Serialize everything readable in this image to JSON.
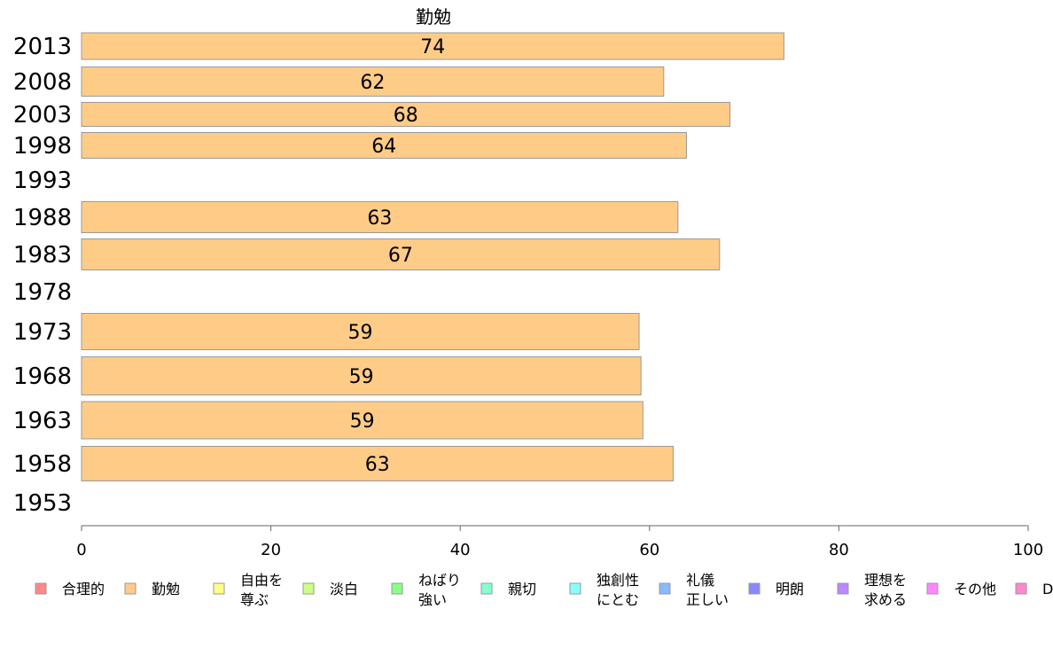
{
  "chart_data": {
    "type": "bar",
    "orientation": "horizontal",
    "title": "勤勉",
    "xlabel": "",
    "ylabel": "",
    "xlim": [
      0,
      100
    ],
    "x_ticks": [
      "0",
      "20",
      "40",
      "60",
      "80",
      "100"
    ],
    "categories": [
      "2013",
      "2008",
      "2003",
      "1998",
      "1993",
      "1988",
      "1983",
      "1978",
      "1973",
      "1968",
      "1963",
      "1958",
      "1953"
    ],
    "series": [
      {
        "name": "勤勉",
        "color": "#ffcc88",
        "values": [
          74.2,
          61.5,
          68.5,
          63.9,
          null,
          63.0,
          67.4,
          null,
          58.9,
          59.1,
          59.3,
          62.5,
          null
        ],
        "labels": [
          "74",
          "62",
          "68",
          "64",
          "",
          "63",
          "67",
          "",
          "59",
          "59",
          "59",
          "63",
          ""
        ]
      }
    ],
    "grid": false,
    "legend_position": "bottom",
    "legend": [
      {
        "label": "合理的",
        "color": "#ff8888"
      },
      {
        "label": "勤勉",
        "color": "#ffcc88"
      },
      {
        "label": "自由を\n尊ぶ",
        "color": "#ffff88"
      },
      {
        "label": "淡白",
        "color": "#ccff88"
      },
      {
        "label": "ねばり\n強い",
        "color": "#88ff88"
      },
      {
        "label": "親切",
        "color": "#88ffcc"
      },
      {
        "label": "独創性\nにとむ",
        "color": "#88ffff"
      },
      {
        "label": "礼儀\n正しい",
        "color": "#88bbff"
      },
      {
        "label": "明朗",
        "color": "#8888ff"
      },
      {
        "label": "理想を\n求める",
        "color": "#bb88ff"
      },
      {
        "label": "その他",
        "color": "#ff88ff"
      },
      {
        "label": "D",
        "color": "#ff88cc"
      }
    ]
  }
}
